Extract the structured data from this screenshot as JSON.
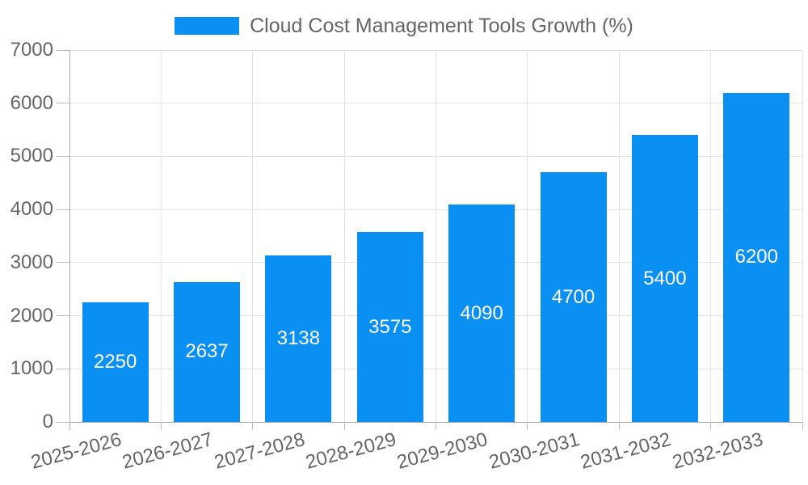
{
  "legend": {
    "label": "Cloud Cost Management Tools Growth (%)"
  },
  "chart_data": {
    "type": "bar",
    "title": "Cloud Cost Management Tools Growth (%)",
    "categories": [
      "2025-2026",
      "2026-2027",
      "2027-2028",
      "2028-2029",
      "2029-2030",
      "2030-2031",
      "2031-2032",
      "2032-2033"
    ],
    "values": [
      2250,
      2637,
      3138,
      3575,
      4090,
      4700,
      5400,
      6200
    ],
    "series": [
      {
        "name": "Cloud Cost Management Tools Growth (%)",
        "values": [
          2250,
          2637,
          3138,
          3575,
          4090,
          4700,
          5400,
          6200
        ]
      }
    ],
    "xlabel": "",
    "ylabel": "",
    "ylim": [
      0,
      7000
    ],
    "yticks": [
      0,
      1000,
      2000,
      3000,
      4000,
      5000,
      6000,
      7000
    ],
    "grid": true,
    "legend_position": "top",
    "value_labels_shown": true,
    "colors": {
      "bar": "#0A8FF2",
      "tick_text": "#666666",
      "value_text": "#FFFFFF",
      "grid": "#E3E3E3",
      "axis_line": "#ABABAB",
      "tick_mark": "#BDBDBD",
      "background": "#FFFFFF"
    }
  }
}
